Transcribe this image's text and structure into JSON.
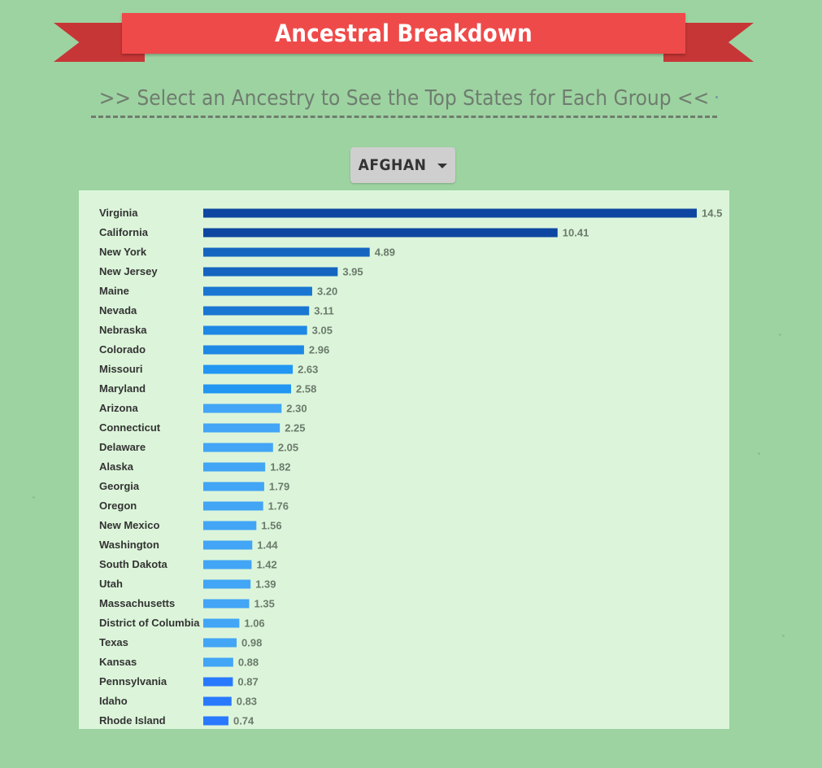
{
  "header": {
    "title": "Ancestral Breakdown",
    "subtitle": ">> Select an Ancestry to See the Top States for Each Group <<"
  },
  "selector": {
    "selected": "AFGHAN"
  },
  "colors": {
    "background": "#9dd3a1",
    "ribbon": "#ef4a4a",
    "ribbon_tail": "#c73636",
    "panel": "#dcf5da",
    "bar_dark": "#0d47a1",
    "bar_light": "#42a5f5",
    "value_text": "#6b7a6b"
  },
  "chart_data": {
    "type": "bar",
    "orientation": "horizontal",
    "categories": [
      "Virginia",
      "California",
      "New York",
      "New Jersey",
      "Maine",
      "Nevada",
      "Nebraska",
      "Colorado",
      "Missouri",
      "Maryland",
      "Arizona",
      "Connecticut",
      "Delaware",
      "Alaska",
      "Georgia",
      "Oregon",
      "New Mexico",
      "Washington",
      "South Dakota",
      "Utah",
      "Massachusetts",
      "District of Columbia",
      "Texas",
      "Kansas",
      "Pennsylvania",
      "Idaho",
      "Rhode Island"
    ],
    "values": [
      14.5,
      10.41,
      4.89,
      3.95,
      3.2,
      3.11,
      3.05,
      2.96,
      2.63,
      2.58,
      2.3,
      2.25,
      2.05,
      1.82,
      1.79,
      1.76,
      1.56,
      1.44,
      1.42,
      1.39,
      1.35,
      1.06,
      0.98,
      0.88,
      0.87,
      0.83,
      0.74
    ],
    "value_labels": [
      "14.5",
      "10.41",
      "4.89",
      "3.95",
      "3.20",
      "3.11",
      "3.05",
      "2.96",
      "2.63",
      "2.58",
      "2.30",
      "2.25",
      "2.05",
      "1.82",
      "1.79",
      "1.76",
      "1.56",
      "1.44",
      "1.42",
      "1.39",
      "1.35",
      "1.06",
      "0.98",
      "0.88",
      "0.87",
      "0.83",
      "0.74"
    ],
    "bar_colors": [
      "#0d47a1",
      "#0d47a1",
      "#1565c0",
      "#1565c0",
      "#1976d2",
      "#1976d2",
      "#1e88e5",
      "#1e88e5",
      "#2196f3",
      "#2196f3",
      "#42a5f5",
      "#42a5f5",
      "#42a5f5",
      "#42a5f5",
      "#42a5f5",
      "#42a5f5",
      "#42a5f5",
      "#42a5f5",
      "#42a5f5",
      "#42a5f5",
      "#42a5f5",
      "#42a5f5",
      "#42a5f5",
      "#42a5f5",
      "#2979ff",
      "#2979ff",
      "#2979ff"
    ],
    "xlim": [
      0,
      14.5
    ],
    "grid": false,
    "legend": "none"
  }
}
